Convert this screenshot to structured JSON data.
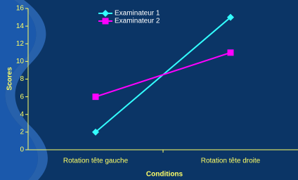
{
  "chart_data": {
    "type": "line",
    "x_label": "Conditions",
    "y_label": "Scores",
    "categories": [
      "Rotation tête gauche",
      "Rotation tête droite"
    ],
    "series": [
      {
        "name": "Examinateur 1",
        "color": "#33ffff",
        "marker": "diamond",
        "values": [
          2,
          15
        ]
      },
      {
        "name": "Examinateur 2",
        "color": "#ff00ff",
        "marker": "square",
        "values": [
          6,
          11
        ]
      }
    ],
    "ylim": [
      0,
      16
    ],
    "yticks": [
      0,
      2,
      4,
      6,
      8,
      10,
      12,
      14,
      16
    ]
  }
}
